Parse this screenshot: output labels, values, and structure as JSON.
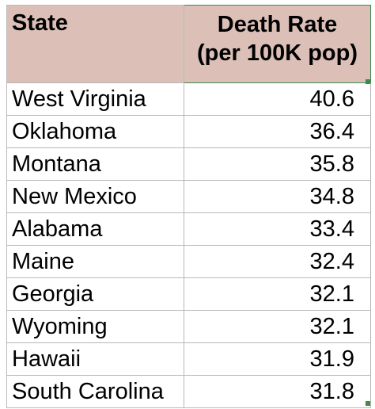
{
  "header": {
    "state": "State",
    "rate_line1": "Death Rate",
    "rate_line2": "(per 100K pop)"
  },
  "rows": [
    {
      "state": "West Virginia",
      "rate": "40.6"
    },
    {
      "state": "Oklahoma",
      "rate": "36.4"
    },
    {
      "state": "Montana",
      "rate": "35.8"
    },
    {
      "state": "New Mexico",
      "rate": "34.8"
    },
    {
      "state": "Alabama",
      "rate": "33.4"
    },
    {
      "state": "Maine",
      "rate": "32.4"
    },
    {
      "state": "Georgia",
      "rate": "32.1"
    },
    {
      "state": "Wyoming",
      "rate": "32.1"
    },
    {
      "state": "Hawaii",
      "rate": "31.9"
    },
    {
      "state": "South Carolina",
      "rate": "31.8"
    }
  ],
  "colors": {
    "header_fill": "#dcc0b8",
    "selection_border": "#3f8a4f"
  }
}
